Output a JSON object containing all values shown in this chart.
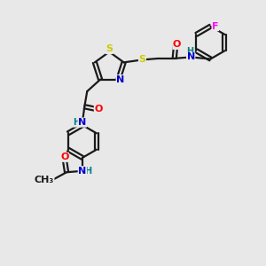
{
  "bg_color": "#e8e8e8",
  "bond_color": "#1a1a1a",
  "atom_colors": {
    "S": "#cccc00",
    "N": "#0000cd",
    "O": "#ff0000",
    "F": "#ff00ff",
    "H": "#008080",
    "C": "#1a1a1a"
  },
  "font_size": 8.0,
  "linewidth": 1.6
}
